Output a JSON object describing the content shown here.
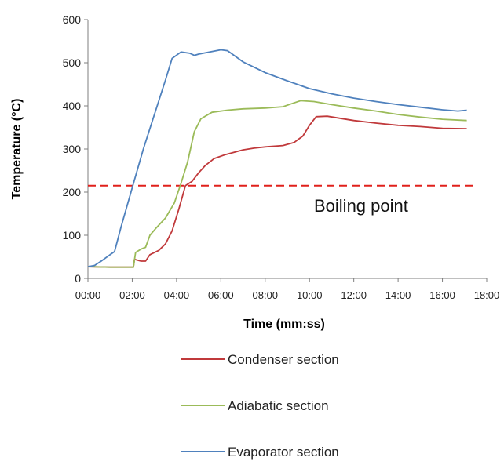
{
  "chart_data": {
    "type": "line",
    "title": "",
    "xlabel": "Time (mm:ss)",
    "ylabel": "Temperature (°C)",
    "xlim": [
      0,
      18
    ],
    "ylim": [
      0,
      600
    ],
    "x_unit": "minutes",
    "x_ticks": [
      "00:00",
      "02:00",
      "04:00",
      "06:00",
      "08:00",
      "10:00",
      "12:00",
      "14:00",
      "16:00",
      "18:00"
    ],
    "y_ticks": [
      "0",
      "100",
      "200",
      "300",
      "400",
      "500",
      "600"
    ],
    "grid": false,
    "legend_placement": "bottom",
    "reference_line": {
      "name": "Boiling point",
      "y": 215,
      "color": "#e0201b",
      "style": "dashed"
    },
    "series": [
      {
        "name": "Condenser section",
        "color": "#c0393b",
        "points": [
          [
            0,
            27
          ],
          [
            1,
            26
          ],
          [
            2.05,
            26
          ],
          [
            2.1,
            44
          ],
          [
            2.4,
            40
          ],
          [
            2.6,
            40
          ],
          [
            2.8,
            55
          ],
          [
            3.2,
            65
          ],
          [
            3.5,
            80
          ],
          [
            3.8,
            110
          ],
          [
            4.1,
            160
          ],
          [
            4.4,
            215
          ],
          [
            4.7,
            225
          ],
          [
            5.0,
            245
          ],
          [
            5.3,
            262
          ],
          [
            5.7,
            278
          ],
          [
            6.2,
            287
          ],
          [
            7.0,
            298
          ],
          [
            7.5,
            302
          ],
          [
            8.0,
            305
          ],
          [
            8.8,
            308
          ],
          [
            9.3,
            315
          ],
          [
            9.7,
            330
          ],
          [
            10.0,
            355
          ],
          [
            10.3,
            375
          ],
          [
            10.8,
            376
          ],
          [
            12,
            366
          ],
          [
            13,
            360
          ],
          [
            14,
            355
          ],
          [
            15,
            352
          ],
          [
            16,
            348
          ],
          [
            17.1,
            347
          ]
        ]
      },
      {
        "name": "Adiabatic section",
        "color": "#9bbb59",
        "points": [
          [
            0,
            27
          ],
          [
            1,
            26
          ],
          [
            2.05,
            26
          ],
          [
            2.15,
            60
          ],
          [
            2.4,
            68
          ],
          [
            2.6,
            72
          ],
          [
            2.8,
            100
          ],
          [
            3.1,
            118
          ],
          [
            3.5,
            140
          ],
          [
            3.9,
            175
          ],
          [
            4.2,
            220
          ],
          [
            4.5,
            270
          ],
          [
            4.8,
            340
          ],
          [
            5.1,
            370
          ],
          [
            5.6,
            385
          ],
          [
            6.3,
            390
          ],
          [
            7.0,
            393
          ],
          [
            8.0,
            395
          ],
          [
            8.8,
            398
          ],
          [
            9.2,
            405
          ],
          [
            9.6,
            412
          ],
          [
            10.2,
            410
          ],
          [
            11,
            403
          ],
          [
            12,
            395
          ],
          [
            13,
            388
          ],
          [
            14,
            380
          ],
          [
            15,
            374
          ],
          [
            16,
            369
          ],
          [
            17.1,
            366
          ]
        ]
      },
      {
        "name": "Evaporator section",
        "color": "#4f81bd",
        "points": [
          [
            0,
            27
          ],
          [
            0.3,
            30
          ],
          [
            0.6,
            40
          ],
          [
            1.0,
            55
          ],
          [
            1.2,
            62
          ],
          [
            1.5,
            120
          ],
          [
            2.0,
            210
          ],
          [
            2.5,
            300
          ],
          [
            3.0,
            380
          ],
          [
            3.5,
            460
          ],
          [
            3.8,
            510
          ],
          [
            4.2,
            525
          ],
          [
            4.6,
            522
          ],
          [
            4.8,
            517
          ],
          [
            5.0,
            520
          ],
          [
            5.5,
            525
          ],
          [
            6.0,
            530
          ],
          [
            6.3,
            528
          ],
          [
            7.0,
            502
          ],
          [
            8.0,
            477
          ],
          [
            9.0,
            458
          ],
          [
            10,
            440
          ],
          [
            11,
            428
          ],
          [
            12,
            418
          ],
          [
            13,
            410
          ],
          [
            14,
            403
          ],
          [
            15,
            397
          ],
          [
            16,
            391
          ],
          [
            16.7,
            388
          ],
          [
            17.1,
            390
          ]
        ]
      }
    ]
  }
}
